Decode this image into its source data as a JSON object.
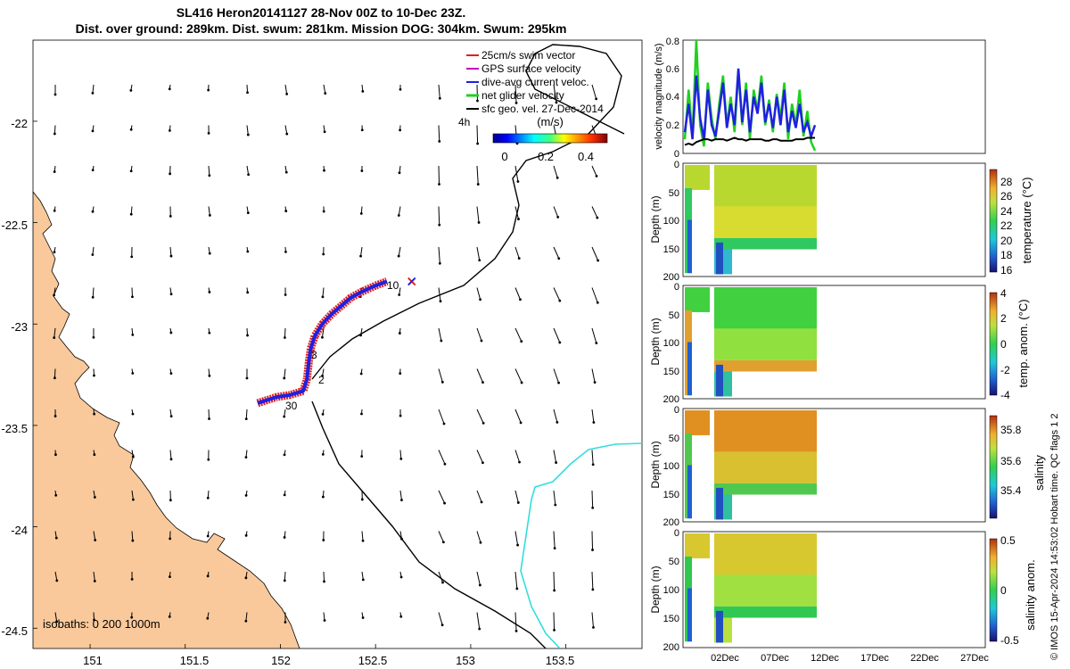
{
  "title_line1": "SL416 Heron20141127 28-Nov 00Z to 10-Dec 23Z.",
  "title_line2": "Dist. over ground: 289km. Dist. swum: 281km. Mission DOG: 304km. Swum: 295km",
  "chart_data": [
    {
      "id": "map",
      "type": "scatter",
      "title": "SL416 Heron20141127 28-Nov 00Z to 10-Dec 23Z.",
      "x_tick_labels": [
        "151",
        "151.5",
        "152",
        "152.5",
        "153",
        "153.5"
      ],
      "x_ticks": [
        151,
        151.5,
        152,
        152.5,
        153,
        153.5
      ],
      "y_tick_labels": [
        "-22",
        "-22.5",
        "-23",
        "-23.5",
        "-24",
        "-24.5"
      ],
      "y_ticks": [
        -22,
        -22.5,
        -23,
        -23.5,
        -24,
        -24.5
      ],
      "xlim": [
        150.7,
        153.9
      ],
      "ylim": [
        -24.6,
        -21.6
      ],
      "legend": [
        {
          "label": "25cm/s swim vector",
          "color": "#e02020"
        },
        {
          "label": "GPS surface velocity",
          "color": "#c000c0"
        },
        {
          "label": "dive-avg current veloc.",
          "color": "#2020e0"
        },
        {
          "label": "net glider velocity",
          "color": "#20d020"
        },
        {
          "label": "sfc geo. vel. 27-Dec-2014",
          "color": "#000000"
        }
      ],
      "legend_position": "top-right",
      "colorbar_title": "(m/s)",
      "colorbar_ticks": [
        "0",
        "0.2",
        "0.4"
      ],
      "annotation_4h": "4h",
      "track_labels": [
        "10",
        "3",
        "2",
        "30"
      ],
      "track": [
        [
          151.88,
          -23.39
        ],
        [
          151.98,
          -23.36
        ],
        [
          152.05,
          -23.35
        ],
        [
          152.12,
          -23.33
        ],
        [
          152.14,
          -23.27
        ],
        [
          152.15,
          -23.18
        ],
        [
          152.16,
          -23.12
        ],
        [
          152.18,
          -23.06
        ],
        [
          152.22,
          -23.0
        ],
        [
          152.27,
          -22.95
        ],
        [
          152.32,
          -22.91
        ],
        [
          152.37,
          -22.87
        ],
        [
          152.43,
          -22.84
        ],
        [
          152.5,
          -22.81
        ],
        [
          152.56,
          -22.79
        ]
      ],
      "end_marker": [
        152.69,
        -22.79
      ],
      "isobaths_text": "isobaths: 0   200  1000m"
    },
    {
      "id": "velocity",
      "type": "line",
      "ylabel": "velocity magnitude (m/s)",
      "ylim": [
        0,
        0.8
      ],
      "y_tick_labels": [
        "0",
        "0.2",
        "0.4",
        "0.6",
        "0.8"
      ],
      "series": [
        {
          "name": "net glider velocity",
          "color": "#20d020",
          "values": [
            0.1,
            0.45,
            0.12,
            0.8,
            0.2,
            0.05,
            0.5,
            0.25,
            0.1,
            0.35,
            0.55,
            0.2,
            0.4,
            0.15,
            0.58,
            0.2,
            0.5,
            0.1,
            0.45,
            0.3,
            0.55,
            0.2,
            0.38,
            0.15,
            0.42,
            0.25,
            0.5,
            0.1,
            0.35,
            0.2,
            0.45,
            0.12,
            0.3,
            0.08,
            0.02
          ]
        },
        {
          "name": "dive-avg current veloc.",
          "color": "#2020e0",
          "values": [
            0.15,
            0.35,
            0.1,
            0.55,
            0.25,
            0.1,
            0.45,
            0.2,
            0.12,
            0.3,
            0.5,
            0.18,
            0.35,
            0.2,
            0.6,
            0.22,
            0.45,
            0.15,
            0.4,
            0.28,
            0.5,
            0.22,
            0.35,
            0.18,
            0.4,
            0.2,
            0.45,
            0.15,
            0.3,
            0.18,
            0.35,
            0.15,
            0.22,
            0.12,
            0.2
          ]
        },
        {
          "name": "sfc geo. vel.",
          "color": "#000000",
          "values": [
            0.06,
            0.07,
            0.06,
            0.08,
            0.09,
            0.1,
            0.1,
            0.09,
            0.1,
            0.1,
            0.1,
            0.09,
            0.1,
            0.11,
            0.1,
            0.1,
            0.09,
            0.1,
            0.1,
            0.1,
            0.1,
            0.09,
            0.09,
            0.1,
            0.1,
            0.09,
            0.09,
            0.09,
            0.09,
            0.1,
            0.1,
            0.1,
            0.11,
            0.11,
            0.11
          ]
        }
      ]
    },
    {
      "id": "temperature",
      "type": "heatmap",
      "ylabel": "Depth (m)",
      "y_tick_labels": [
        "0",
        "50",
        "100",
        "150",
        "200"
      ],
      "ylim": [
        200,
        0
      ],
      "colorbar_label": "temperature (°C)",
      "colorbar_ticks": [
        "28",
        "26",
        "24",
        "22",
        "20",
        "18",
        "16"
      ],
      "colorbar_range": [
        15.5,
        29.5
      ]
    },
    {
      "id": "temp-anomaly",
      "type": "heatmap",
      "ylabel": "Depth (m)",
      "y_tick_labels": [
        "0",
        "50",
        "100",
        "150",
        "200"
      ],
      "ylim": [
        200,
        0
      ],
      "colorbar_label": "temp. anom. (°C)",
      "colorbar_ticks": [
        "4",
        "2",
        "0",
        "-2",
        "-4"
      ],
      "colorbar_range": [
        -4,
        4
      ]
    },
    {
      "id": "salinity",
      "type": "heatmap",
      "ylabel": "Depth (m)",
      "y_tick_labels": [
        "0",
        "50",
        "100",
        "150",
        "200"
      ],
      "ylim": [
        200,
        0
      ],
      "colorbar_label": "salinity",
      "colorbar_ticks": [
        "35.8",
        "35.6",
        "35.4"
      ],
      "colorbar_range": [
        35.3,
        35.9
      ]
    },
    {
      "id": "salinity-anomaly",
      "type": "heatmap",
      "ylabel": "Depth (m)",
      "y_tick_labels": [
        "0",
        "50",
        "100",
        "150",
        "200"
      ],
      "ylim": [
        200,
        0
      ],
      "colorbar_label": "salinity anom.",
      "colorbar_ticks": [
        "0.5",
        "0",
        "-0.5"
      ],
      "colorbar_range": [
        -0.5,
        0.5
      ],
      "x_tick_labels": [
        "02Dec",
        "07Dec",
        "12Dec",
        "17Dec",
        "22Dec",
        "27Dec"
      ]
    }
  ],
  "side_caption": "© IMOS 15-Apr-2024 14:53:02 Hobart time. QC flags 1  2",
  "colors": {
    "land": "#f9c99b",
    "current_line": "#33dddd"
  }
}
